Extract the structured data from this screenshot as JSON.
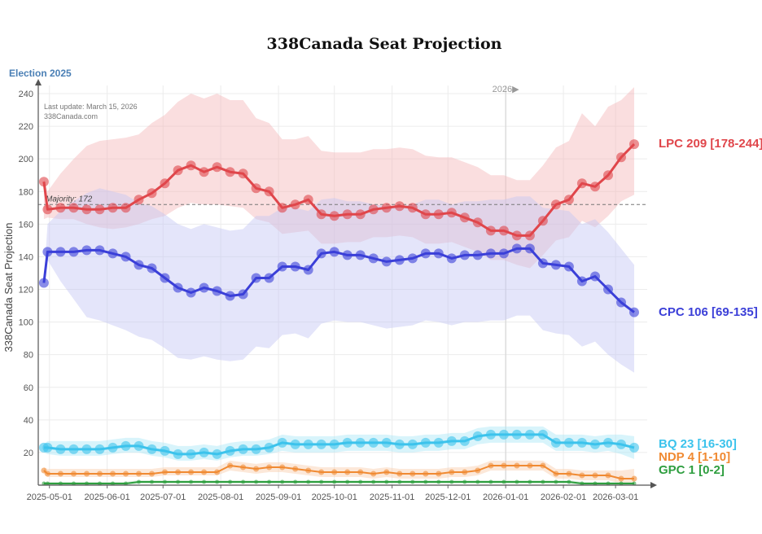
{
  "chart_data": {
    "type": "line",
    "title": "338Canada Seat Projection",
    "ylabel": "338Canada Seat Projection",
    "election_label": "Election 2025",
    "last_update": "Last update: March 15, 2026",
    "site": "338Canada.com",
    "year_marker": {
      "label": "2026▶",
      "date": "2026-01-01"
    },
    "majority": {
      "label": "Majority: 172",
      "value": 172
    },
    "ylim": [
      0,
      245
    ],
    "yticks": [
      20,
      40,
      60,
      80,
      100,
      120,
      140,
      160,
      180,
      200,
      220,
      240
    ],
    "xlim": [
      "2025-04-25",
      "2026-03-18"
    ],
    "xticks": [
      "2025-05-01",
      "2025-06-01",
      "2025-07-01",
      "2025-08-01",
      "2025-09-01",
      "2025-10-01",
      "2025-11-01",
      "2025-12-01",
      "2026-01-01",
      "2026-02-01",
      "2026-03-01"
    ],
    "grid": true,
    "x": [
      "2025-04-28",
      "2025-04-30",
      "2025-05-07",
      "2025-05-14",
      "2025-05-21",
      "2025-05-28",
      "2025-06-04",
      "2025-06-11",
      "2025-06-18",
      "2025-06-25",
      "2025-07-02",
      "2025-07-09",
      "2025-07-16",
      "2025-07-23",
      "2025-07-30",
      "2025-08-06",
      "2025-08-13",
      "2025-08-20",
      "2025-08-27",
      "2025-09-03",
      "2025-09-10",
      "2025-09-17",
      "2025-09-24",
      "2025-10-01",
      "2025-10-08",
      "2025-10-15",
      "2025-10-22",
      "2025-10-29",
      "2025-11-05",
      "2025-11-12",
      "2025-11-19",
      "2025-11-26",
      "2025-12-03",
      "2025-12-10",
      "2025-12-17",
      "2025-12-24",
      "2025-12-31",
      "2026-01-07",
      "2026-01-14",
      "2026-01-21",
      "2026-01-28",
      "2026-02-04",
      "2026-02-11",
      "2026-02-18",
      "2026-02-25",
      "2026-03-04",
      "2026-03-11"
    ],
    "series": [
      {
        "name": "LPC",
        "color": "#e0464b",
        "band_color": "#f5b5b8",
        "label": "LPC 209 [178-244]",
        "values": [
          186,
          169,
          170,
          170,
          169,
          169,
          170,
          170,
          175,
          179,
          185,
          193,
          196,
          192,
          195,
          192,
          191,
          182,
          180,
          170,
          172,
          175,
          166,
          165,
          166,
          166,
          169,
          170,
          171,
          170,
          166,
          166,
          167,
          164,
          161,
          156,
          156,
          153,
          153,
          162,
          172,
          175,
          185,
          183,
          190,
          201,
          209
        ],
        "low": [
          163,
          164,
          163,
          163,
          160,
          158,
          157,
          158,
          160,
          163,
          165,
          170,
          173,
          172,
          172,
          171,
          170,
          163,
          161,
          154,
          155,
          156,
          148,
          148,
          149,
          149,
          152,
          152,
          153,
          152,
          148,
          148,
          149,
          146,
          143,
          138,
          138,
          135,
          133,
          141,
          150,
          152,
          162,
          158,
          165,
          174,
          178
        ],
        "high": [
          188,
          180,
          191,
          200,
          208,
          211,
          212,
          213,
          215,
          222,
          227,
          235,
          240,
          237,
          240,
          236,
          236,
          225,
          222,
          212,
          212,
          214,
          205,
          204,
          204,
          204,
          206,
          206,
          207,
          206,
          202,
          201,
          201,
          198,
          195,
          190,
          190,
          187,
          187,
          196,
          207,
          211,
          228,
          220,
          232,
          236,
          244
        ]
      },
      {
        "name": "CPC",
        "color": "#3b3fd8",
        "band_color": "#c3c6f5",
        "label": "CPC 106 [69-135]",
        "values": [
          124,
          143,
          143,
          143,
          144,
          144,
          142,
          140,
          135,
          133,
          127,
          121,
          118,
          121,
          119,
          116,
          117,
          127,
          127,
          134,
          134,
          132,
          142,
          143,
          141,
          141,
          139,
          137,
          138,
          139,
          142,
          142,
          139,
          141,
          141,
          142,
          142,
          145,
          145,
          136,
          135,
          134,
          125,
          128,
          120,
          112,
          106
        ],
        "low": [
          124,
          138,
          125,
          114,
          103,
          101,
          98,
          95,
          91,
          89,
          84,
          78,
          77,
          79,
          77,
          76,
          77,
          85,
          84,
          92,
          93,
          90,
          99,
          101,
          100,
          100,
          98,
          96,
          97,
          98,
          101,
          100,
          98,
          100,
          100,
          101,
          101,
          104,
          104,
          95,
          93,
          92,
          85,
          88,
          80,
          74,
          69
        ],
        "high": [
          126,
          160,
          168,
          174,
          179,
          182,
          180,
          178,
          173,
          171,
          166,
          160,
          157,
          160,
          158,
          156,
          157,
          165,
          165,
          170,
          170,
          168,
          175,
          176,
          174,
          174,
          172,
          171,
          171,
          172,
          175,
          175,
          172,
          174,
          174,
          175,
          175,
          177,
          177,
          170,
          169,
          168,
          160,
          163,
          155,
          145,
          135
        ]
      },
      {
        "name": "BQ",
        "color": "#3cc3ec",
        "band_color": "#a9e6f7",
        "label": "BQ 23 [16-30]",
        "values": [
          23,
          23,
          22,
          22,
          22,
          22,
          23,
          24,
          24,
          22,
          21,
          19,
          19,
          20,
          19,
          21,
          22,
          22,
          23,
          26,
          25,
          25,
          25,
          25,
          26,
          26,
          26,
          26,
          25,
          25,
          26,
          26,
          27,
          27,
          30,
          31,
          31,
          31,
          31,
          31,
          26,
          26,
          26,
          25,
          26,
          25,
          23
        ],
        "low": [
          20,
          19,
          18,
          18,
          18,
          18,
          19,
          20,
          20,
          18,
          17,
          15,
          15,
          16,
          15,
          17,
          18,
          18,
          19,
          21,
          20,
          20,
          20,
          20,
          21,
          21,
          21,
          21,
          20,
          20,
          21,
          21,
          22,
          22,
          25,
          26,
          26,
          26,
          26,
          26,
          21,
          21,
          21,
          20,
          21,
          19,
          16
        ],
        "high": [
          25,
          27,
          27,
          27,
          27,
          27,
          28,
          29,
          29,
          27,
          26,
          24,
          24,
          25,
          24,
          26,
          27,
          27,
          28,
          31,
          30,
          30,
          30,
          30,
          31,
          31,
          31,
          31,
          30,
          30,
          31,
          31,
          32,
          32,
          35,
          36,
          36,
          36,
          36,
          36,
          31,
          31,
          31,
          30,
          31,
          31,
          30
        ]
      },
      {
        "name": "NDP",
        "color": "#f08a32",
        "band_color": "#f8ccab",
        "label": "NDP 4 [1-10]",
        "values": [
          9,
          7,
          7,
          7,
          7,
          7,
          7,
          7,
          7,
          7,
          8,
          8,
          8,
          8,
          8,
          12,
          11,
          10,
          11,
          11,
          10,
          9,
          8,
          8,
          8,
          8,
          7,
          8,
          7,
          7,
          7,
          7,
          8,
          8,
          9,
          12,
          12,
          12,
          12,
          12,
          7,
          7,
          6,
          6,
          6,
          4,
          4
        ],
        "low": [
          7,
          5,
          5,
          5,
          5,
          5,
          5,
          5,
          5,
          5,
          6,
          6,
          6,
          6,
          6,
          9,
          8,
          7,
          8,
          8,
          7,
          6,
          5,
          5,
          5,
          5,
          4,
          5,
          4,
          4,
          4,
          4,
          5,
          5,
          6,
          9,
          9,
          9,
          9,
          9,
          4,
          4,
          3,
          3,
          3,
          1,
          1
        ],
        "high": [
          11,
          10,
          10,
          10,
          10,
          10,
          10,
          10,
          10,
          10,
          11,
          11,
          11,
          11,
          11,
          15,
          14,
          13,
          14,
          14,
          13,
          12,
          11,
          11,
          11,
          11,
          10,
          11,
          10,
          10,
          10,
          10,
          11,
          11,
          12,
          15,
          15,
          15,
          15,
          15,
          10,
          10,
          9,
          9,
          9,
          9,
          10
        ]
      },
      {
        "name": "GPC",
        "color": "#2e9e3f",
        "band_color": "#a9dcb1",
        "label": "GPC 1 [0-2]",
        "values": [
          1,
          1,
          1,
          1,
          1,
          1,
          1,
          1,
          2,
          2,
          2,
          2,
          2,
          2,
          2,
          2,
          2,
          2,
          2,
          2,
          2,
          2,
          2,
          2,
          2,
          2,
          2,
          2,
          2,
          2,
          2,
          2,
          2,
          2,
          2,
          2,
          2,
          2,
          2,
          2,
          2,
          2,
          1,
          1,
          1,
          1,
          1
        ],
        "low": [
          0,
          0,
          0,
          0,
          0,
          0,
          0,
          0,
          1,
          1,
          1,
          1,
          1,
          1,
          1,
          1,
          1,
          1,
          1,
          1,
          1,
          1,
          1,
          1,
          1,
          1,
          1,
          1,
          1,
          1,
          1,
          1,
          1,
          1,
          1,
          1,
          1,
          1,
          1,
          1,
          1,
          1,
          0,
          0,
          0,
          0,
          0
        ],
        "high": [
          2,
          2,
          2,
          2,
          2,
          2,
          2,
          2,
          3,
          3,
          3,
          3,
          3,
          3,
          3,
          3,
          3,
          3,
          3,
          3,
          3,
          3,
          3,
          3,
          3,
          3,
          3,
          3,
          3,
          3,
          3,
          3,
          3,
          3,
          3,
          3,
          3,
          3,
          3,
          3,
          3,
          3,
          2,
          2,
          2,
          2,
          2
        ]
      }
    ]
  }
}
